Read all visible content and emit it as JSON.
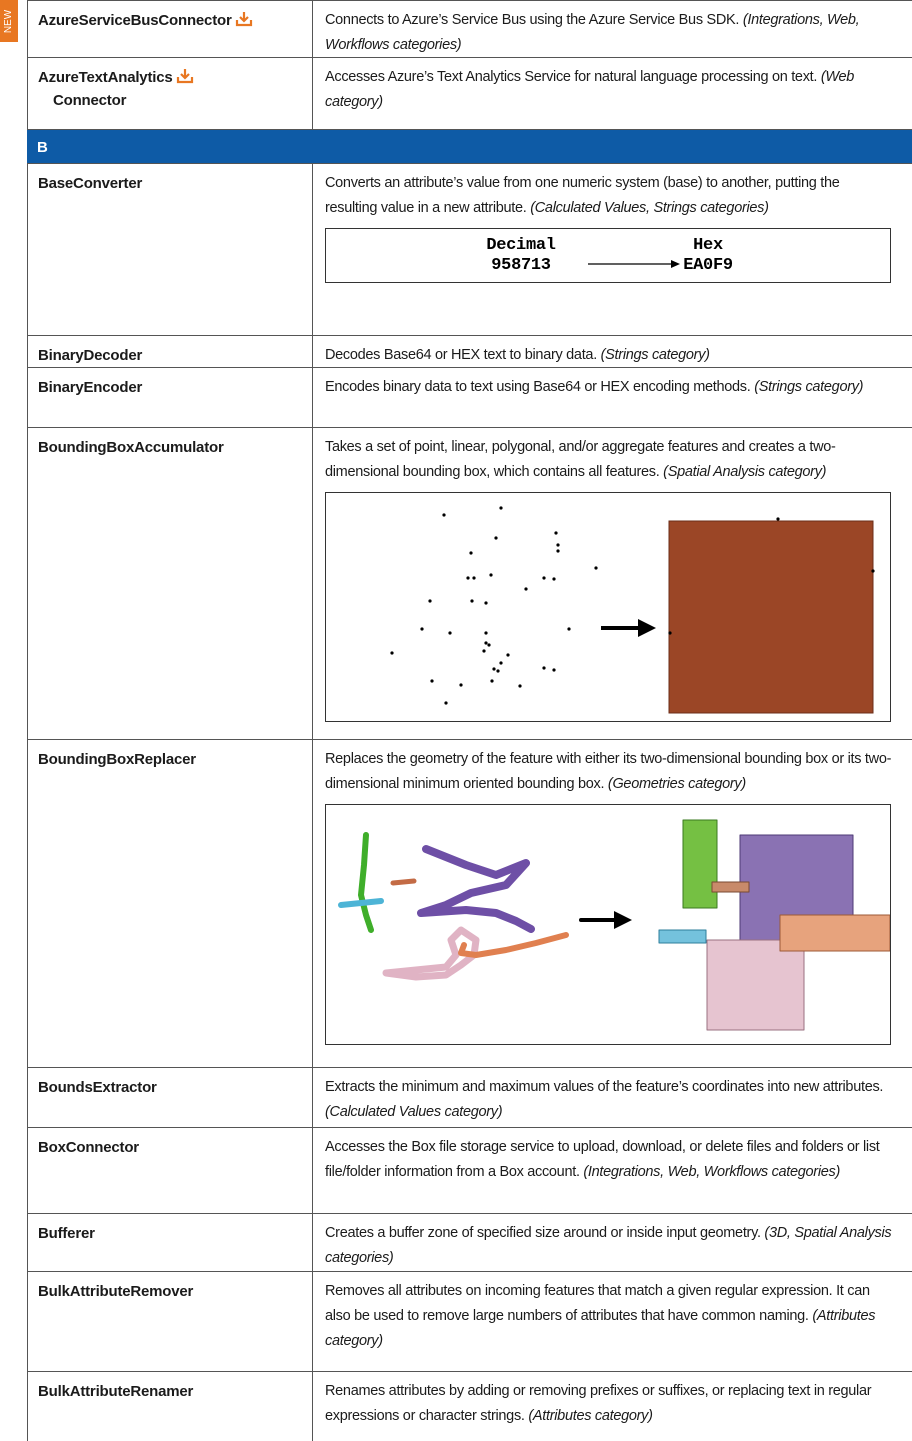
{
  "badge": "NEW",
  "rows": [
    {
      "name": "AzureServiceBusConnector",
      "description": "Connects to Azure’s Service Bus using the Azure Service Bus SDK.",
      "note": "(Integrations, Web, Workflows categories)"
    },
    {
      "name": "AzureTextAnalytics",
      "name_line2": "Connector",
      "description": "Accesses Azure’s Text Analytics Service for natural language processing on text.",
      "note": "(Web category)"
    }
  ],
  "section": {
    "letter": "B",
    "rows": [
      {
        "name": "BaseConverter",
        "description": "Converts an attribute’s value from one numeric system (base) to another, putting the resulting value in a new attribute.",
        "note": "(Calculated Values, Strings categories)",
        "figure": {
          "from_label": "Decimal",
          "from_value": "958713",
          "to_label": "Hex",
          "to_value": "EA0F9"
        }
      },
      {
        "name": "BinaryDecoder",
        "description": "Decodes Base64 or HEX text to binary data.",
        "note": "(Strings category)"
      },
      {
        "name": "BinaryEncoder",
        "description": "Encodes binary data to text using Base64 or HEX encoding methods.",
        "note": "(Strings category)"
      },
      {
        "name": "BoundingBoxAccumulator",
        "description": "Takes a set of point, linear, polygonal, and/or aggregate features and creates a two-dimensional bounding box, which contains all features.",
        "note": "(Spatial Analysis category)"
      },
      {
        "name": "BoundingBoxReplacer",
        "description": "Replaces the geometry of the feature with either its two-dimensional bounding box or its two-dimensional minimum oriented bounding box.",
        "note": "(Geometries category)"
      },
      {
        "name": "BoundsExtractor",
        "description": "Extracts the minimum and maximum values of the feature’s coordinates into new attributes.",
        "note": "(Calculated Values category)"
      },
      {
        "name": "BoxConnector",
        "description": "Accesses the Box file storage service to upload, download, or delete files and folders or list file/folder information from a Box account.",
        "note": "(Integrations, Web, Workflows categories)"
      },
      {
        "name": "Bufferer",
        "description": "Creates a buffer zone of specified size around or inside input geometry.",
        "note": "(3D, Spatial Analysis categories)"
      },
      {
        "name": "BulkAttributeRemover",
        "description": "Removes all attributes on incoming features that match a given regular expression. It can also be used to remove large numbers of attributes that have common naming.",
        "note": "(Attributes category)"
      },
      {
        "name": "BulkAttributeRenamer",
        "description": "Renames attributes by adding or removing prefixes or suffixes, or replacing text in regular expressions or character strings.",
        "note": "(Attributes category)"
      }
    ]
  }
}
